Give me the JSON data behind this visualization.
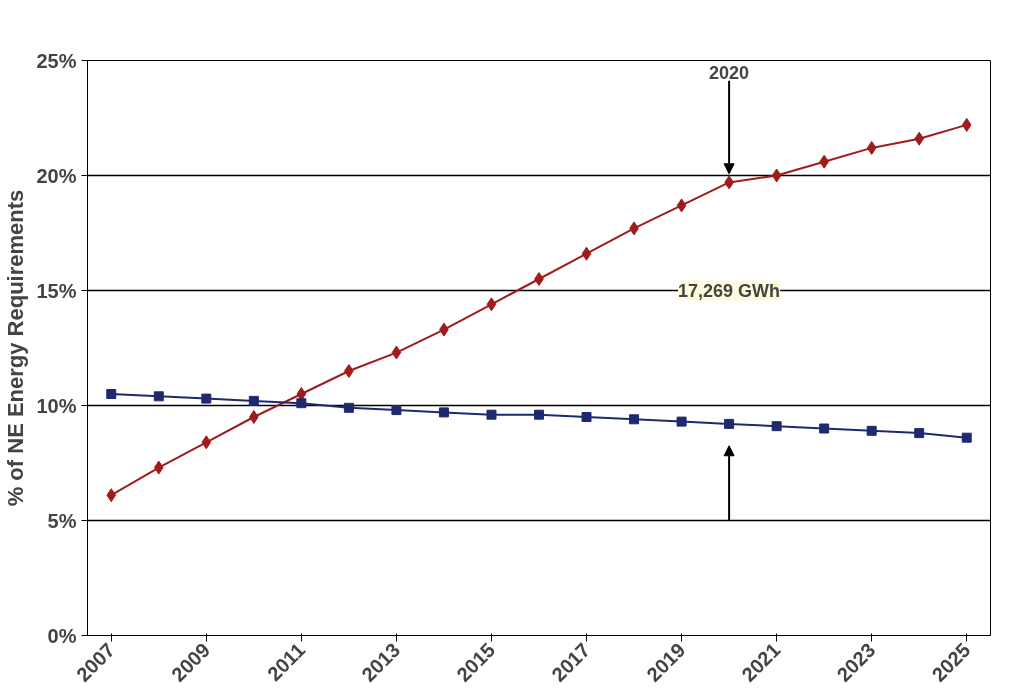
{
  "chart_data": {
    "type": "line",
    "ylabel": "% of NE Energy Requirements",
    "x": [
      2007,
      2008,
      2009,
      2010,
      2011,
      2012,
      2013,
      2014,
      2015,
      2016,
      2017,
      2018,
      2019,
      2020,
      2021,
      2022,
      2023,
      2024,
      2025
    ],
    "xlim": [
      2006.5,
      2025.5
    ],
    "xticks": [
      2007,
      2009,
      2011,
      2013,
      2015,
      2017,
      2019,
      2021,
      2023,
      2025
    ],
    "ylim": [
      0,
      25
    ],
    "yticks": [
      {
        "value": 0,
        "label": "0%"
      },
      {
        "value": 5,
        "label": "5%"
      },
      {
        "value": 10,
        "label": "10%"
      },
      {
        "value": 15,
        "label": "15%"
      },
      {
        "value": 20,
        "label": "20%"
      },
      {
        "value": 25,
        "label": "25%"
      }
    ],
    "grid": "y",
    "series": [
      {
        "color": "#a01c1c",
        "marker": "diamond",
        "values": [
          6.1,
          7.3,
          8.4,
          9.5,
          10.5,
          11.5,
          12.3,
          13.3,
          14.4,
          15.5,
          16.6,
          17.7,
          18.7,
          19.7,
          20.0,
          20.6,
          21.2,
          21.6,
          22.2
        ]
      },
      {
        "color": "#1f2a6e",
        "marker": "square",
        "values": [
          10.5,
          10.4,
          10.3,
          10.2,
          10.1,
          9.9,
          9.8,
          9.7,
          9.6,
          9.6,
          9.5,
          9.4,
          9.3,
          9.2,
          9.1,
          9.0,
          8.9,
          8.8,
          8.6
        ]
      }
    ],
    "annotations": [
      "17,269 GWh",
      {
        "text": "2020",
        "x": 2020,
        "y": 19.7
      }
    ]
  }
}
